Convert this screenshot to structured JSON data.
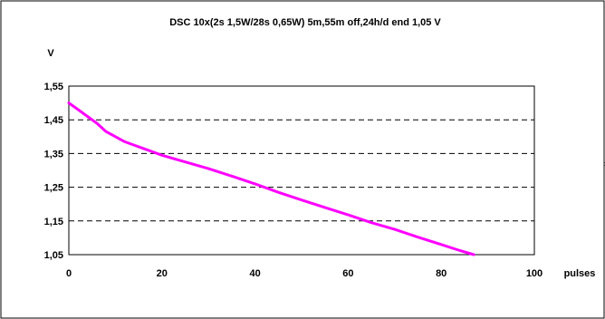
{
  "chart_data": {
    "type": "line",
    "title": "DSC 10x(2s 1,5W/28s 0,65W) 5m,55m off,24h/d end 1,05 V",
    "ylabel": "V",
    "xlabel": "pulses",
    "xlim": [
      0,
      100
    ],
    "ylim": [
      1.05,
      1.55
    ],
    "x_ticks": [
      0,
      20,
      40,
      60,
      80,
      100
    ],
    "x_tick_labels": [
      "0",
      "20",
      "40",
      "60",
      "80",
      "100"
    ],
    "y_ticks": [
      1.05,
      1.15,
      1.25,
      1.35,
      1.45,
      1.55
    ],
    "y_tick_labels": [
      "1,05",
      "1,15",
      "1,25",
      "1,35",
      "1,45",
      "1,55"
    ],
    "grid": "horizontal-dashed",
    "series": [
      {
        "color": "#ff00ff",
        "x": [
          0,
          2,
          4,
          6,
          8,
          10,
          12,
          14,
          16,
          18,
          20,
          25,
          30,
          35,
          40,
          45,
          50,
          55,
          60,
          65,
          70,
          75,
          80,
          84,
          87
        ],
        "y": [
          1.5,
          1.48,
          1.46,
          1.44,
          1.415,
          1.4,
          1.385,
          1.375,
          1.365,
          1.355,
          1.345,
          1.325,
          1.305,
          1.283,
          1.26,
          1.235,
          1.212,
          1.19,
          1.168,
          1.145,
          1.125,
          1.102,
          1.08,
          1.062,
          1.05
        ]
      }
    ]
  },
  "colors": {
    "line": "#ff00ff",
    "grid": "#000000",
    "frame": "#000000",
    "background": "#ffffff"
  }
}
